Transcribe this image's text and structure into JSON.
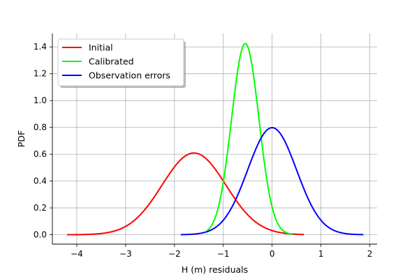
{
  "chart_data": {
    "type": "line",
    "title": "",
    "xlabel": "H (m) residuals",
    "ylabel": "PDF",
    "xlim": [
      -4.5,
      2.15
    ],
    "ylim": [
      -0.07,
      1.5
    ],
    "xticks": [
      -4,
      -3,
      -2,
      -1,
      0,
      1,
      2
    ],
    "yticks": [
      0.0,
      0.2,
      0.4,
      0.6,
      0.8,
      1.0,
      1.2,
      1.4
    ],
    "grid": true,
    "legend_position": "top-left",
    "series": [
      {
        "name": "Initial",
        "color": "#ff0000",
        "distribution": "normal",
        "mean": -1.6,
        "std": 0.655,
        "x_range": [
          -4.2,
          0.65
        ]
      },
      {
        "name": "Calibrated",
        "color": "#00ff00",
        "distribution": "normal",
        "mean": -0.55,
        "std": 0.28,
        "x_range": [
          -1.35,
          0.42
        ]
      },
      {
        "name": "Observation errors",
        "color": "#0000ff",
        "distribution": "normal",
        "mean": 0.0,
        "std": 0.5,
        "x_range": [
          -1.87,
          1.87
        ]
      }
    ]
  }
}
